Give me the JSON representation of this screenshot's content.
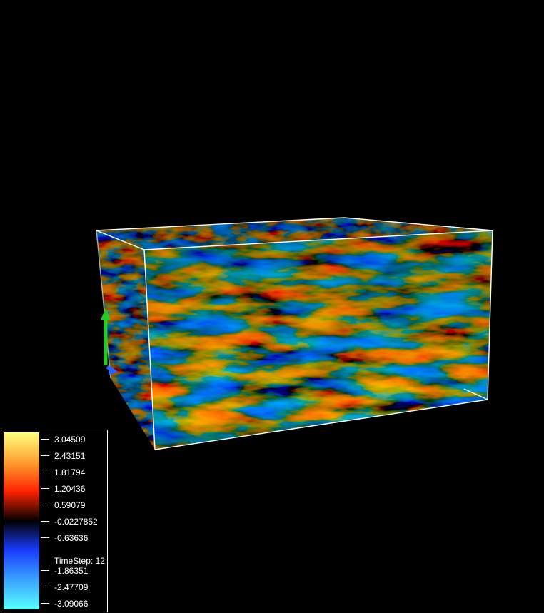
{
  "scene": {
    "colors": {
      "background": "#000000",
      "box_outline": "#ffffff",
      "axis_y": "#22cc22",
      "axis_z": "#2266ff",
      "positive": "#d23a12",
      "negative": "#1f3fd6"
    }
  },
  "legend": {
    "ticks": [
      "3.04509",
      "2.43151",
      "1.81794",
      "1.20436",
      "0.59079",
      "-0.0227852",
      "-0.63636",
      "-1.86351",
      "-2.47709",
      "-3.09066"
    ],
    "timestep_label": "TimeStep: 12",
    "colormap": [
      "#57ffff",
      "#3aa3ff",
      "#1a3dff",
      "#000000",
      "#ff2200",
      "#ffa030",
      "#ffff80"
    ]
  }
}
